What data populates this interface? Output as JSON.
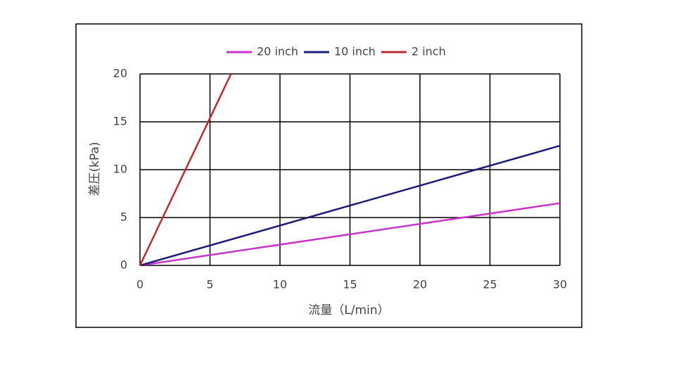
{
  "chart_data": {
    "type": "line",
    "x_label": "流量（L/min）",
    "y_label": "差圧(kPa)",
    "series": [
      {
        "name": "20 inch",
        "color": "#c832c8",
        "x": [
          0,
          30
        ],
        "values": [
          0,
          6.5
        ]
      },
      {
        "name": "10 inch",
        "color": "#1c1c78",
        "x": [
          0,
          30
        ],
        "values": [
          0,
          12.5
        ]
      },
      {
        "name": "2 inch",
        "color": "#c0282a",
        "x": [
          0,
          6.5
        ],
        "values": [
          0,
          20
        ]
      }
    ],
    "xlim": [
      0,
      30
    ],
    "xticks": [
      0,
      5,
      10,
      15,
      20,
      25,
      30
    ],
    "ylim": [
      0,
      20
    ],
    "yticks": [
      0,
      5,
      10,
      15,
      20
    ],
    "grid": true,
    "legend": "top"
  }
}
